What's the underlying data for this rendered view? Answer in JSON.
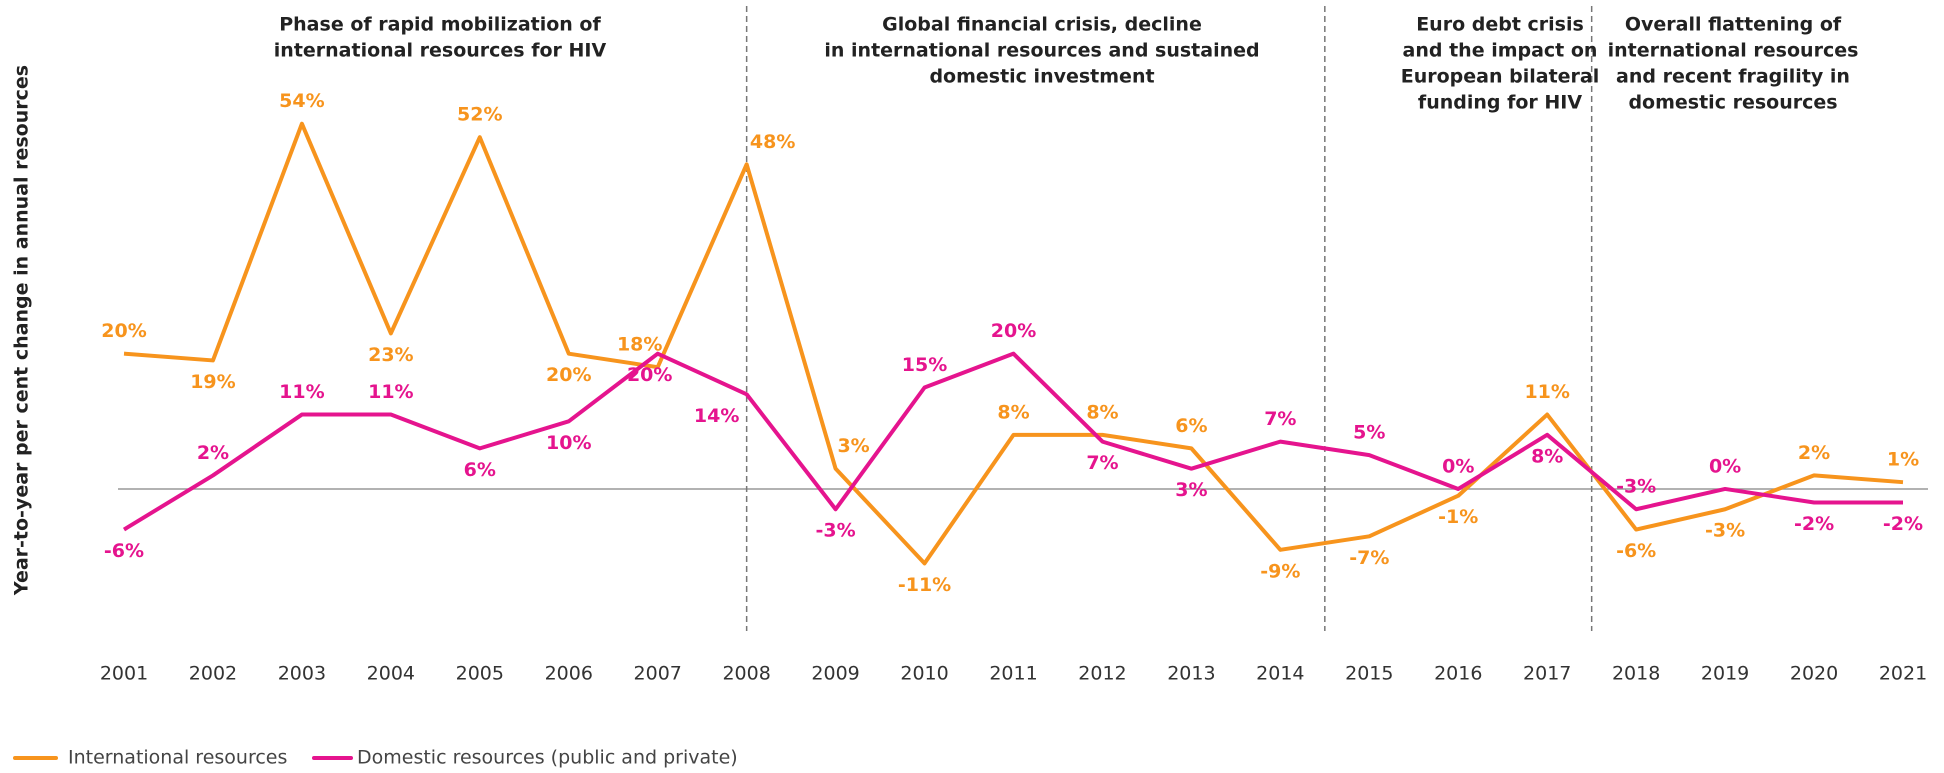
{
  "chart_data": {
    "type": "line",
    "y_axis_label": "Year-to-year per cent change in annual resources",
    "categories": [
      "2001",
      "2002",
      "2003",
      "2004",
      "2005",
      "2006",
      "2007",
      "2008",
      "2009",
      "2010",
      "2011",
      "2012",
      "2013",
      "2014",
      "2015",
      "2016",
      "2017",
      "2018",
      "2019",
      "2020",
      "2021"
    ],
    "series": [
      {
        "name": "International resources",
        "color": "#f7941d",
        "values": [
          20,
          19,
          54,
          23,
          52,
          20,
          18,
          48,
          3,
          -11,
          8,
          8,
          6,
          -9,
          -7,
          -1,
          11,
          -6,
          -3,
          2,
          1
        ],
        "value_labels": [
          "20%",
          "19%",
          "54%",
          "23%",
          "52%",
          "20%",
          "18%",
          "48%",
          "3%",
          "-11%",
          "8%",
          "8%",
          "6%",
          "-9%",
          "-7%",
          "-1%",
          "11%",
          "-6%",
          "-3%",
          "2%",
          "1%"
        ]
      },
      {
        "name": "Domestic resources (public and private)",
        "color": "#e5148e",
        "values": [
          -6,
          2,
          11,
          11,
          6,
          10,
          20,
          14,
          -3,
          15,
          20,
          7,
          3,
          7,
          5,
          0,
          8,
          -3,
          0,
          -2,
          -2
        ],
        "value_labels": [
          "-6%",
          "2%",
          "11%",
          "11%",
          "6%",
          "10%",
          "20%",
          "14%",
          "-3%",
          "15%",
          "20%",
          "7%",
          "3%",
          "7%",
          "5%",
          "0%",
          "8%",
          "-3%",
          "0%",
          "-2%",
          "-2%"
        ]
      }
    ],
    "ylim": [
      -21,
      68
    ],
    "annotations": [
      {
        "lines": [
          "Phase of rapid mobilization of",
          "international resources for HIV"
        ]
      },
      {
        "lines": [
          "Global financial crisis, decline",
          "in international resources and sustained",
          "domestic investment"
        ]
      },
      {
        "lines": [
          "Euro debt crisis",
          "and the impact on",
          "European bilateral",
          "funding for HIV"
        ]
      },
      {
        "lines": [
          "Overall flattening of",
          "international resources",
          "and recent fragility in",
          "domestic resources"
        ]
      }
    ]
  }
}
